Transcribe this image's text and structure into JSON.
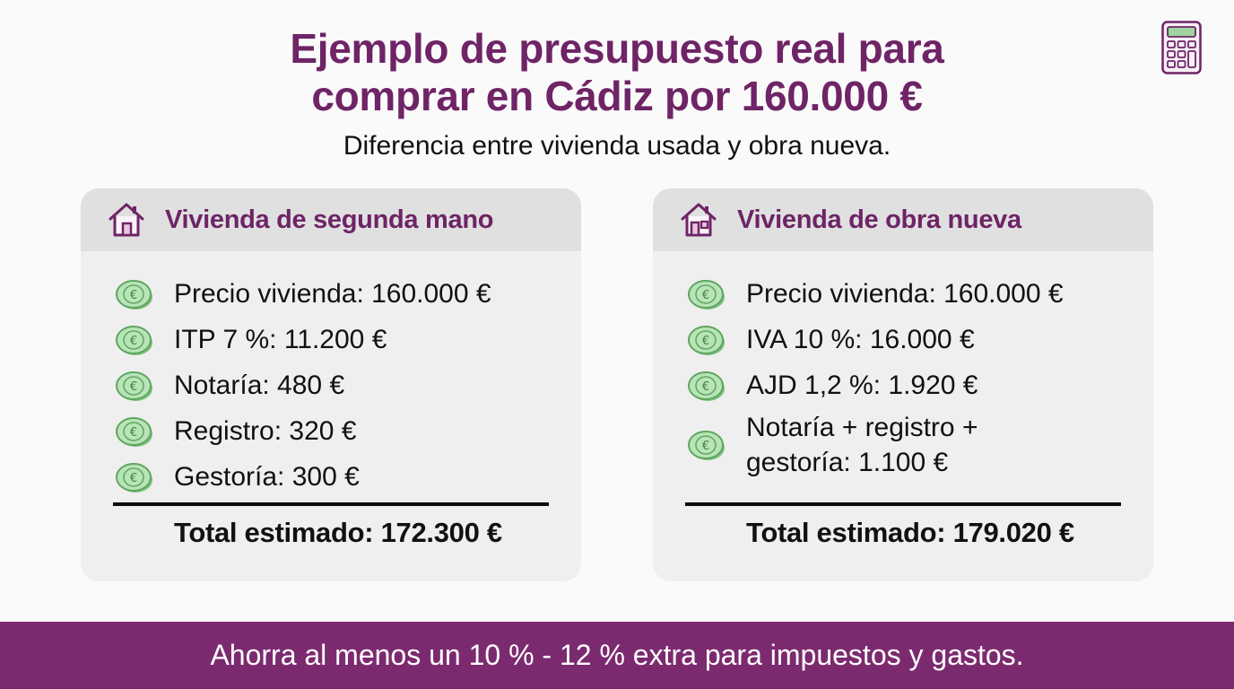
{
  "title": {
    "line1": "Ejemplo de presupuesto real para",
    "line2": "comprar en Cádiz por 160.000 €"
  },
  "subtitle": "Diferencia entre vivienda usada y obra nueva.",
  "icons": {
    "top_right": "calculator-icon",
    "card_header": "house-icon",
    "row_bullet": "euro-coins-icon"
  },
  "colors": {
    "accent": "#6e2466",
    "banner": "#7c2a6f",
    "card_bg": "#efefef",
    "card_header_bg": "#e0e0e0",
    "coin": "#8fcf8f"
  },
  "cards": [
    {
      "heading": "Vivienda de segunda mano",
      "items": [
        "Precio vivienda: 160.000 €",
        "ITP 7 %: 11.200 €",
        "Notaría: 480 €",
        "Registro: 320 €",
        "Gestoría: 300 €"
      ],
      "total": "Total estimado: 172.300 €"
    },
    {
      "heading": "Vivienda de obra nueva",
      "items": [
        "Precio vivienda: 160.000 €",
        "IVA 10 %: 16.000 €",
        "AJD 1,2 %: 1.920 €",
        "Notaría + registro + gestoría: 1.100 €"
      ],
      "total": "Total estimado: 179.020 €"
    }
  ],
  "banner": "Ahorra al menos un 10 % - 12 % extra para impuestos y gastos."
}
